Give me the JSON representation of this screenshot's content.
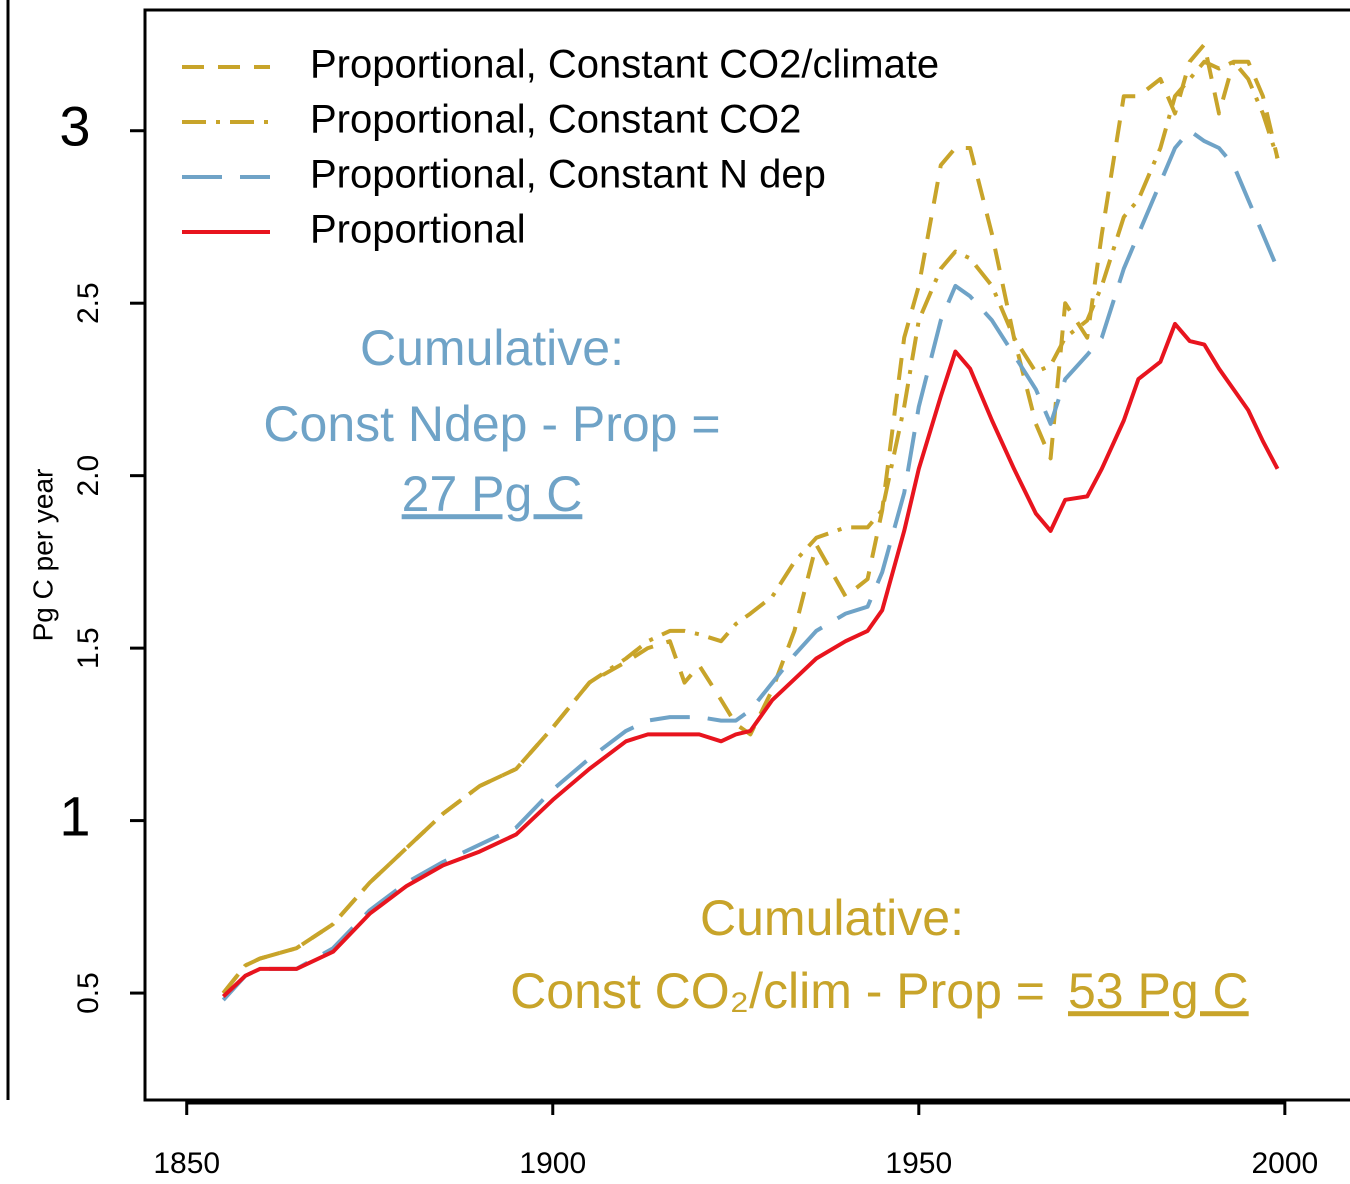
{
  "chart_data": {
    "type": "line",
    "y_label": "Pg C per year",
    "x": [
      1855,
      1858,
      1860,
      1865,
      1870,
      1875,
      1880,
      1885,
      1890,
      1895,
      1900,
      1905,
      1910,
      1913,
      1916,
      1918,
      1920,
      1923,
      1925,
      1927,
      1930,
      1933,
      1936,
      1940,
      1943,
      1945,
      1948,
      1950,
      1953,
      1955,
      1957,
      1960,
      1963,
      1966,
      1968,
      1970,
      1973,
      1975,
      1978,
      1980,
      1983,
      1985,
      1987,
      1989,
      1991,
      1993,
      1995,
      1997,
      1999
    ],
    "series": [
      {
        "name": "Proportional, Constant CO2/climate",
        "color": "#c8a42a",
        "linestyle": "dashed",
        "values": [
          0.5,
          0.58,
          0.6,
          0.63,
          0.7,
          0.82,
          0.92,
          1.02,
          1.1,
          1.15,
          1.27,
          1.4,
          1.46,
          1.5,
          1.52,
          1.4,
          1.45,
          1.35,
          1.28,
          1.25,
          1.38,
          1.55,
          1.8,
          1.65,
          1.7,
          1.9,
          2.4,
          2.55,
          2.9,
          2.95,
          2.95,
          2.7,
          2.4,
          2.15,
          2.05,
          2.5,
          2.4,
          2.7,
          3.1,
          3.1,
          3.15,
          3.05,
          3.2,
          3.25,
          3.05,
          3.2,
          3.2,
          3.1,
          2.92
        ]
      },
      {
        "name": "Proportional, Constant CO2",
        "color": "#c8a42a",
        "linestyle": "dashdot",
        "values": [
          0.5,
          0.58,
          0.6,
          0.63,
          0.7,
          0.82,
          0.92,
          1.02,
          1.1,
          1.15,
          1.27,
          1.4,
          1.47,
          1.52,
          1.55,
          1.55,
          1.54,
          1.52,
          1.57,
          1.6,
          1.65,
          1.75,
          1.82,
          1.85,
          1.85,
          1.9,
          2.2,
          2.45,
          2.6,
          2.65,
          2.63,
          2.55,
          2.4,
          2.3,
          2.32,
          2.4,
          2.45,
          2.55,
          2.75,
          2.8,
          2.95,
          3.1,
          3.15,
          3.2,
          3.18,
          3.2,
          3.15,
          3.05,
          2.92
        ]
      },
      {
        "name": "Proportional, Constant N dep",
        "color": "#6fa3c7",
        "linestyle": "longdash",
        "values": [
          0.48,
          0.55,
          0.57,
          0.57,
          0.63,
          0.74,
          0.82,
          0.88,
          0.93,
          0.98,
          1.09,
          1.18,
          1.26,
          1.29,
          1.3,
          1.3,
          1.3,
          1.29,
          1.29,
          1.32,
          1.4,
          1.48,
          1.55,
          1.6,
          1.62,
          1.72,
          1.95,
          2.2,
          2.45,
          2.55,
          2.52,
          2.45,
          2.35,
          2.25,
          2.15,
          2.28,
          2.35,
          2.4,
          2.6,
          2.7,
          2.85,
          2.95,
          3.0,
          2.97,
          2.95,
          2.9,
          2.8,
          2.7,
          2.6
        ]
      },
      {
        "name": "Proportional",
        "color": "#e8141e",
        "linestyle": "solid",
        "values": [
          0.49,
          0.55,
          0.57,
          0.57,
          0.62,
          0.73,
          0.81,
          0.87,
          0.91,
          0.96,
          1.06,
          1.15,
          1.23,
          1.25,
          1.25,
          1.25,
          1.25,
          1.23,
          1.25,
          1.26,
          1.35,
          1.41,
          1.47,
          1.52,
          1.55,
          1.61,
          1.84,
          2.02,
          2.23,
          2.36,
          2.31,
          2.16,
          2.02,
          1.89,
          1.84,
          1.93,
          1.94,
          2.02,
          2.16,
          2.28,
          2.33,
          2.44,
          2.39,
          2.38,
          2.31,
          2.25,
          2.19,
          2.1,
          2.02
        ]
      }
    ],
    "xlim": [
      1844.3,
      2008.9
    ],
    "ylim": [
      0.19,
      3.35
    ],
    "xticks": [
      1850,
      1900,
      1950,
      2000
    ],
    "yticks": [
      0.5,
      1,
      1.5,
      {
        "value": 2,
        "label": "2.0"
      },
      2.5,
      3
    ],
    "legend": "top-left",
    "annotations": [
      {
        "color": "#6fa3c7",
        "lines": [
          "Cumulative:",
          "Const Ndep - Prop =",
          "27 Pg C"
        ]
      },
      {
        "color": "#c8a42a",
        "lines": [
          "Cumulative:",
          "Const CO₂/clim - Prop =",
          "53 Pg C"
        ]
      }
    ]
  }
}
